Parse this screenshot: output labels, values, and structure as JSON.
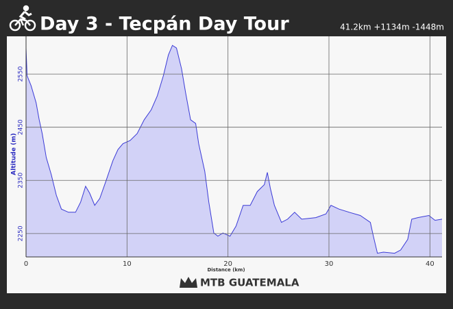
{
  "chart_data": {
    "type": "area",
    "title": "Day 3 - Tecpán Day Tour",
    "subtitle": "41.2km +1134m -1448m",
    "xlabel": "Distance (km)",
    "ylabel": "Altitude (m)",
    "x": [
      0,
      0.1,
      0.5,
      1.0,
      1.3,
      1.6,
      2.0,
      2.5,
      3.0,
      3.5,
      4.2,
      4.9,
      5.4,
      5.9,
      6.3,
      6.8,
      7.3,
      7.9,
      8.6,
      9.1,
      9.6,
      10.3,
      11.0,
      11.7,
      12.4,
      13.0,
      13.6,
      14.1,
      14.5,
      14.9,
      15.4,
      15.8,
      16.3,
      16.8,
      17.1,
      17.7,
      18.1,
      18.6,
      19.0,
      19.5,
      20.2,
      20.8,
      21.5,
      22.2,
      22.9,
      23.6,
      23.9,
      24.2,
      24.6,
      25.3,
      25.9,
      26.6,
      27.3,
      28.7,
      29.7,
      30.2,
      31.0,
      32.0,
      33.1,
      34.1,
      34.4,
      34.8,
      35.4,
      36.5,
      37.1,
      37.8,
      38.2,
      38.8,
      39.9,
      40.5,
      41.2
    ],
    "values": [
      2599,
      2547,
      2528,
      2496,
      2464,
      2438,
      2393,
      2361,
      2322,
      2296,
      2290,
      2290,
      2309,
      2339,
      2326,
      2303,
      2316,
      2348,
      2387,
      2408,
      2419,
      2425,
      2438,
      2464,
      2483,
      2509,
      2547,
      2586,
      2604,
      2599,
      2560,
      2515,
      2464,
      2457,
      2419,
      2367,
      2309,
      2251,
      2245,
      2251,
      2245,
      2264,
      2303,
      2303,
      2329,
      2342,
      2365,
      2335,
      2303,
      2271,
      2277,
      2290,
      2277,
      2280,
      2287,
      2303,
      2296,
      2290,
      2284,
      2271,
      2245,
      2213,
      2215,
      2213,
      2219,
      2239,
      2277,
      2280,
      2284,
      2275,
      2277
    ],
    "color": "#3a3ad6",
    "fill": "#d2d2f7",
    "xlim": [
      0,
      41.2
    ],
    "xticks": [
      0,
      10,
      20,
      30,
      40
    ],
    "ylim": [
      2206,
      2621
    ],
    "yticks": [
      2250,
      2350,
      2450,
      2550
    ],
    "grid": true
  },
  "footer": {
    "brand": "MTB GUATEMALA"
  }
}
